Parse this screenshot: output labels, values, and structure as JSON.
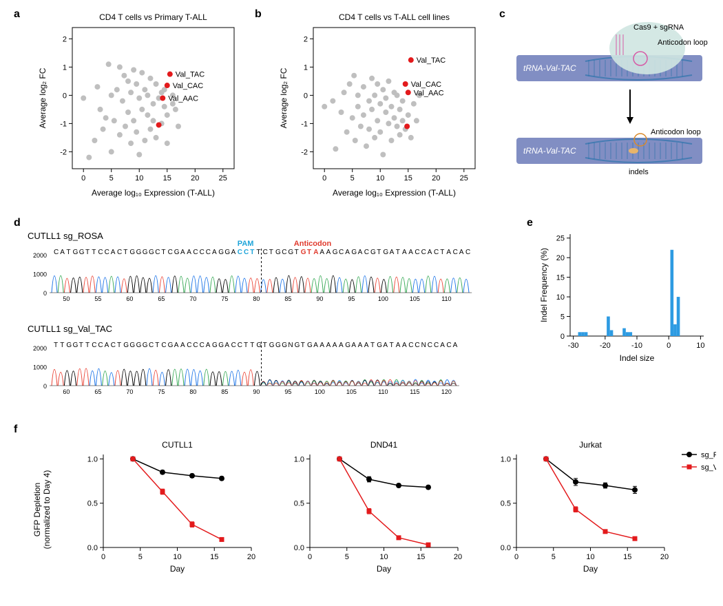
{
  "panels": {
    "a": {
      "label": "a",
      "title": "CD4 T cells vs Primary T-ALL",
      "xlabel": "Average log₁₀ Expression (T-ALL)",
      "ylabel": "Average log₂ FC",
      "xlim": [
        -2,
        27
      ],
      "ylim": [
        -2.6,
        2.4
      ],
      "xticks": [
        0,
        5,
        10,
        15,
        20,
        25
      ],
      "yticks": [
        -2,
        -1,
        0,
        1,
        2
      ],
      "grey_points": [
        [
          0,
          -0.1
        ],
        [
          1,
          -2.2
        ],
        [
          2,
          -1.6
        ],
        [
          2.5,
          0.3
        ],
        [
          3,
          -0.5
        ],
        [
          3.5,
          -1.2
        ],
        [
          4,
          -0.8
        ],
        [
          4.5,
          1.1
        ],
        [
          5,
          0.0
        ],
        [
          5,
          -2.0
        ],
        [
          5.5,
          -0.9
        ],
        [
          6,
          0.2
        ],
        [
          6.5,
          -1.4
        ],
        [
          6.5,
          1.0
        ],
        [
          7,
          -0.2
        ],
        [
          7.3,
          0.7
        ],
        [
          7.5,
          -1.1
        ],
        [
          8,
          -0.6
        ],
        [
          8,
          0.5
        ],
        [
          8.5,
          -1.7
        ],
        [
          8.5,
          0.1
        ],
        [
          9,
          -0.9
        ],
        [
          9,
          0.9
        ],
        [
          9.5,
          0.4
        ],
        [
          9.5,
          -1.3
        ],
        [
          10,
          -0.1
        ],
        [
          10,
          -2.1
        ],
        [
          10.5,
          0.8
        ],
        [
          10.5,
          -0.5
        ],
        [
          11,
          -1.6
        ],
        [
          11,
          0.2
        ],
        [
          11.5,
          -0.7
        ],
        [
          11.5,
          0.0
        ],
        [
          12,
          -1.2
        ],
        [
          12,
          0.6
        ],
        [
          12.5,
          -0.3
        ],
        [
          12.5,
          -0.9
        ],
        [
          13,
          -1.5
        ],
        [
          13,
          0.4
        ],
        [
          13.5,
          -0.1
        ],
        [
          14,
          -1.0
        ],
        [
          14,
          0.1
        ],
        [
          14.5,
          -0.4
        ],
        [
          14.5,
          0.2
        ],
        [
          15,
          -0.7
        ],
        [
          15,
          -1.7
        ],
        [
          16,
          -0.3
        ],
        [
          16,
          0.0
        ],
        [
          16.5,
          -0.5
        ],
        [
          17,
          -1.1
        ]
      ],
      "red_points": [
        {
          "x": 15.5,
          "y": 0.75,
          "label": "Val_TAC"
        },
        {
          "x": 15,
          "y": 0.35,
          "label": "Val_CAC"
        },
        {
          "x": 14.2,
          "y": -0.1,
          "label": "Val_AAC"
        },
        {
          "x": 13.5,
          "y": -1.05,
          "label": ""
        }
      ],
      "point_radius": 4,
      "grey_color": "#bfbfbf",
      "red_color": "#e31a1c"
    },
    "b": {
      "label": "b",
      "title": "CD4 T cells vs T-ALL cell lines",
      "xlabel": "Average log₁₀ Expression (T-ALL)",
      "ylabel": "Average log₂ FC",
      "xlim": [
        -2,
        27
      ],
      "ylim": [
        -2.6,
        2.4
      ],
      "xticks": [
        0,
        5,
        10,
        15,
        20,
        25
      ],
      "yticks": [
        -2,
        -1,
        0,
        1,
        2
      ],
      "grey_points": [
        [
          0,
          -0.4
        ],
        [
          1.5,
          -0.2
        ],
        [
          2,
          -1.9
        ],
        [
          3,
          -0.6
        ],
        [
          3.5,
          0.1
        ],
        [
          4,
          -1.3
        ],
        [
          4.5,
          0.4
        ],
        [
          5,
          -0.8
        ],
        [
          5.3,
          0.7
        ],
        [
          5.5,
          -1.6
        ],
        [
          6,
          0.0
        ],
        [
          6,
          -0.4
        ],
        [
          6.5,
          -1.1
        ],
        [
          7,
          0.3
        ],
        [
          7,
          -0.7
        ],
        [
          7.5,
          -1.8
        ],
        [
          8,
          -0.2
        ],
        [
          8,
          -1.2
        ],
        [
          8.5,
          0.6
        ],
        [
          8.5,
          -0.5
        ],
        [
          9,
          -1.5
        ],
        [
          9,
          0.0
        ],
        [
          9.5,
          -0.9
        ],
        [
          9.5,
          0.4
        ],
        [
          10,
          -1.3
        ],
        [
          10,
          -0.3
        ],
        [
          10.5,
          0.2
        ],
        [
          10.5,
          -2.1
        ],
        [
          11,
          -0.6
        ],
        [
          11,
          -0.1
        ],
        [
          11.5,
          -1.0
        ],
        [
          11.5,
          0.5
        ],
        [
          12,
          -0.4
        ],
        [
          12,
          -1.6
        ],
        [
          12.5,
          -0.8
        ],
        [
          12.5,
          0.1
        ],
        [
          13,
          -1.1
        ],
        [
          13,
          0.0
        ],
        [
          13.5,
          -0.5
        ],
        [
          13.5,
          -1.4
        ],
        [
          14,
          -0.2
        ],
        [
          14,
          -0.9
        ],
        [
          14.5,
          -1.2
        ],
        [
          15,
          -0.7
        ],
        [
          15.5,
          -1.5
        ],
        [
          16,
          -0.3
        ],
        [
          16.5,
          -0.9
        ],
        [
          17,
          0.0
        ]
      ],
      "red_points": [
        {
          "x": 15.5,
          "y": 1.25,
          "label": "Val_TAC"
        },
        {
          "x": 14.5,
          "y": 0.4,
          "label": "Val_CAC"
        },
        {
          "x": 15,
          "y": 0.1,
          "label": "Val_AAC"
        },
        {
          "x": 14.8,
          "y": -1.1,
          "label": ""
        }
      ],
      "point_radius": 4,
      "grey_color": "#bfbfbf",
      "red_color": "#e31a1c"
    },
    "c": {
      "label": "c",
      "top_label": "tRNA-Val-TAC",
      "cas9_label": "Cas9 + sgRNA",
      "anticodon_label": "Anticodon loop",
      "indels_label": "indels",
      "bottom_label": "tRNA-Val-TAC",
      "bar_color": "#6b7ab8",
      "cas9_fill": "#cfe6e1",
      "rna_color": "#d65aa6",
      "dna_color": "#1f6fa8"
    },
    "d": {
      "label": "d",
      "rosa_title": "CUTLL1 sg_ROSA",
      "val_title": "CUTLL1 sg_Val_TAC",
      "pam_label": "PAM",
      "pam_color": "#1ea4d9",
      "anticodon_label": "Anticodon",
      "anticodon_color": "#e03a2d",
      "rosa_seq": "CATGGTTCCACTGGGGCTCGAACCCAGGACCTTCTGCGTGTAAAGCAGACGTGATAACCACTACAC",
      "rosa_pam": "CCT",
      "rosa_anticodon": "GTA",
      "rosa_xaxis": [
        50,
        55,
        60,
        65,
        70,
        75,
        80,
        85,
        90,
        95,
        100,
        105,
        110
      ],
      "val_seq": "TTGGTTCCACTGGGGCTCGAACCCAGGACCTTGTGGGNGTGAAAAAGAAATGATAACCNCCACA",
      "val_xaxis": [
        60,
        65,
        70,
        75,
        80,
        85,
        90,
        95,
        100,
        105,
        110,
        115,
        120
      ],
      "yaxis": [
        0,
        1000,
        2000
      ],
      "trace_colors": {
        "A": "#34a853",
        "C": "#1a73e8",
        "G": "#000000",
        "T": "#ea4335",
        "N": "#888888"
      }
    },
    "e": {
      "label": "e",
      "xlabel": "Indel size",
      "ylabel": "Indel Frequency (%)",
      "xlim": [
        -31,
        11
      ],
      "ylim": [
        0,
        26
      ],
      "xticks": [
        -30,
        -20,
        -10,
        0,
        10
      ],
      "yticks": [
        0,
        5,
        10,
        15,
        20,
        25
      ],
      "bars": [
        [
          -28,
          1
        ],
        [
          -27,
          1
        ],
        [
          -26,
          1
        ],
        [
          -19,
          5
        ],
        [
          -18,
          1.5
        ],
        [
          -14,
          2
        ],
        [
          -13,
          1
        ],
        [
          -12,
          1
        ],
        [
          1,
          22
        ],
        [
          2,
          3
        ],
        [
          3,
          10
        ]
      ],
      "bar_color": "#2d9be2",
      "bar_width": 1.0
    },
    "f": {
      "label": "f",
      "ylabel_top": "GFP Depletion",
      "ylabel_bottom": "(normalized to Day 4)",
      "xlabel": "Day",
      "xticks": [
        0,
        5,
        10,
        15,
        20
      ],
      "yticks": [
        0.0,
        0.5,
        1.0
      ],
      "legend": [
        {
          "name": "sg_ROSA",
          "color": "#000000",
          "marker": "circle"
        },
        {
          "name": "sg_Val_TAC",
          "color": "#e31a1c",
          "marker": "square"
        }
      ],
      "charts": [
        {
          "title": "CUTLL1",
          "rosa": {
            "x": [
              4,
              8,
              12,
              16
            ],
            "y": [
              1.0,
              0.85,
              0.81,
              0.78
            ],
            "err": [
              0,
              0.02,
              0.02,
              0.02
            ]
          },
          "val": {
            "x": [
              4,
              8,
              12,
              16
            ],
            "y": [
              1.0,
              0.63,
              0.26,
              0.09
            ],
            "err": [
              0,
              0.03,
              0.03,
              0.02
            ]
          }
        },
        {
          "title": "DND41",
          "rosa": {
            "x": [
              4,
              8,
              12,
              16
            ],
            "y": [
              1.0,
              0.77,
              0.7,
              0.68
            ],
            "err": [
              0,
              0.03,
              0.02,
              0.02
            ]
          },
          "val": {
            "x": [
              4,
              8,
              12,
              16
            ],
            "y": [
              1.0,
              0.41,
              0.11,
              0.03
            ],
            "err": [
              0,
              0.03,
              0.02,
              0.01
            ]
          }
        },
        {
          "title": "Jurkat",
          "rosa": {
            "x": [
              4,
              8,
              12,
              16
            ],
            "y": [
              1.0,
              0.74,
              0.7,
              0.65
            ],
            "err": [
              0,
              0.04,
              0.03,
              0.04
            ]
          },
          "val": {
            "x": [
              4,
              8,
              12,
              16
            ],
            "y": [
              1.0,
              0.43,
              0.18,
              0.1
            ],
            "err": [
              0,
              0.03,
              0.02,
              0.02
            ]
          }
        }
      ]
    }
  }
}
